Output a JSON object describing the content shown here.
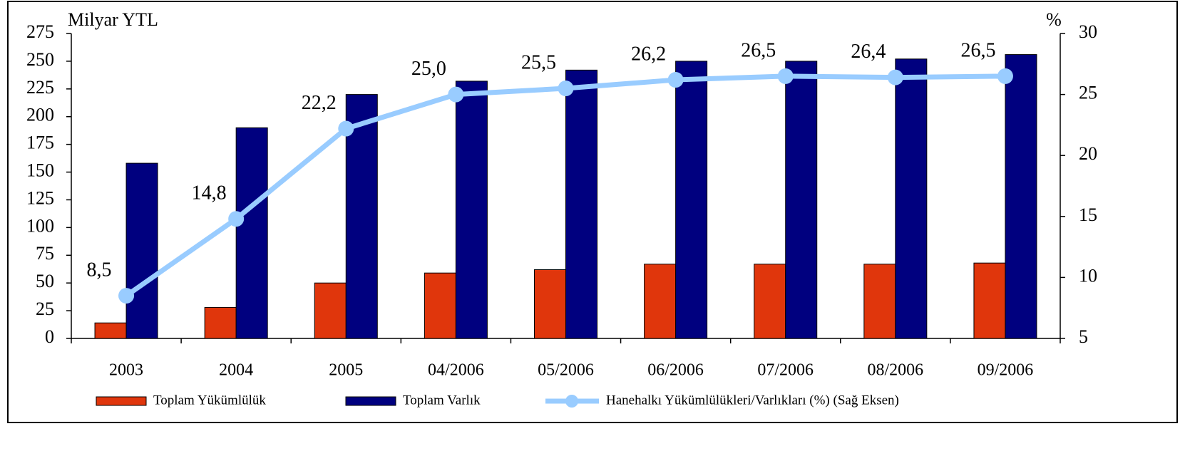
{
  "chart_data": {
    "type": "bar",
    "y_axis_label": "Milyar YTL",
    "y2_axis_label": "%",
    "categories": [
      "2003",
      "2004",
      "2005",
      "04/2006",
      "05/2006",
      "06/2006",
      "07/2006",
      "08/2006",
      "09/2006"
    ],
    "series": [
      {
        "name": "Toplam Yükümlülük",
        "color": "#e0360c",
        "type": "bar",
        "values": [
          14,
          28,
          50,
          59,
          62,
          67,
          67,
          67,
          68
        ]
      },
      {
        "name": "Toplam Varlık",
        "color": "#00007f",
        "type": "bar",
        "values": [
          158,
          190,
          220,
          232,
          242,
          250,
          250,
          252,
          256
        ]
      },
      {
        "name": "Hanehalkı Yükümlülükleri/Varlıkları (%) (Sağ Eksen)",
        "color": "#99ccff",
        "type": "line",
        "axis": "y2",
        "values": [
          8.5,
          14.8,
          22.2,
          25.0,
          25.5,
          26.2,
          26.5,
          26.4,
          26.5
        ],
        "value_labels": [
          "8,5",
          "14,8",
          "22,2",
          "25,0",
          "25,5",
          "26,2",
          "26,5",
          "26,4",
          "26,5"
        ]
      }
    ],
    "ylim": [
      0,
      275
    ],
    "yticks": [
      0,
      25,
      50,
      75,
      100,
      125,
      150,
      175,
      200,
      225,
      250,
      275
    ],
    "y2lim": [
      5,
      30
    ],
    "y2ticks": [
      5,
      10,
      15,
      20,
      25,
      30
    ],
    "legend": "bottom"
  }
}
